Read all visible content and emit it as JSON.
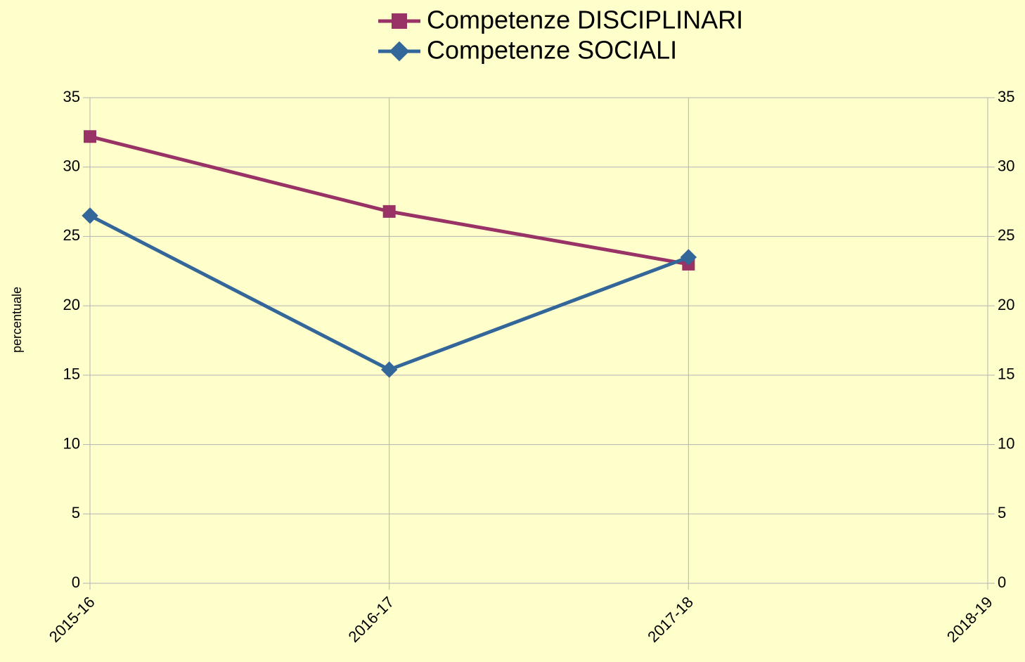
{
  "chart_data": {
    "type": "line",
    "categories": [
      "2015-16",
      "2016-17",
      "2017-18",
      "2018-19"
    ],
    "series": [
      {
        "name": "Competenze DISCIPLINARI",
        "color": "#993366",
        "marker": "square",
        "values": [
          32.2,
          26.8,
          23.0,
          null
        ]
      },
      {
        "name": "Competenze SOCIALI",
        "color": "#336699",
        "marker": "diamond",
        "values": [
          26.5,
          15.4,
          23.5,
          null
        ]
      }
    ],
    "ylabel": "percentuale",
    "ylim": [
      0,
      35
    ],
    "yticks": [
      0,
      5,
      10,
      15,
      20,
      25,
      30,
      35
    ],
    "y2lim": [
      0,
      35
    ],
    "y2ticks": [
      0,
      5,
      10,
      15,
      20,
      25,
      30,
      35
    ],
    "grid": true,
    "legend": "top",
    "background": "#ffffcc"
  }
}
